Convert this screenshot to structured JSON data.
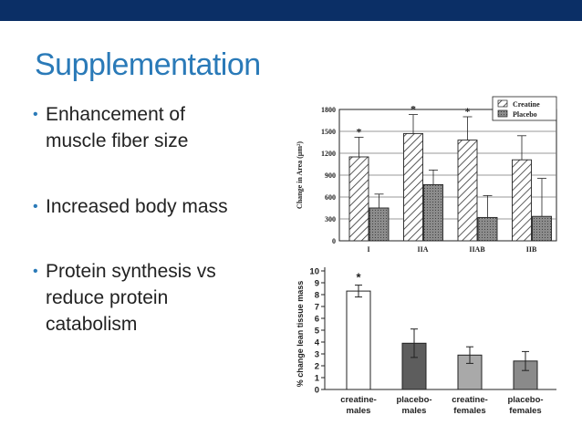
{
  "slide": {
    "title": "Supplementation",
    "bullets": [
      {
        "lines": [
          "Enhancement of",
          "muscle fiber size"
        ]
      },
      {
        "lines": [
          "Increased body mass"
        ]
      },
      {
        "lines": [
          "Protein synthesis vs",
          "reduce protein",
          "catabolism"
        ]
      }
    ]
  },
  "colors": {
    "top_bar": "#0b2f66",
    "title": "#2a7ab8",
    "bullet_text": "#222222"
  },
  "chart_data": [
    {
      "type": "bar",
      "ylabel": "Change in Area (μm²)",
      "categories": [
        "I",
        "IIA",
        "IIAB",
        "IIB"
      ],
      "ylim": [
        0,
        1800
      ],
      "yticks": [
        0,
        300,
        600,
        900,
        1200,
        1500,
        1800
      ],
      "grid": true,
      "legend_position": "top-right",
      "series": [
        {
          "name": "Creatine",
          "values": [
            1150,
            1470,
            1380,
            1110
          ],
          "errors": [
            270,
            260,
            320,
            330
          ],
          "fill": "hatched"
        },
        {
          "name": "Placebo",
          "values": [
            450,
            770,
            320,
            335
          ],
          "errors": [
            190,
            200,
            300,
            520
          ],
          "fill": "dotted-gray"
        }
      ],
      "annotations": [
        "*",
        "*",
        "*"
      ],
      "significant_categories": [
        "I",
        "IIA",
        "IIAB"
      ]
    },
    {
      "type": "bar",
      "ylabel": "% change lean tissue mass",
      "categories": [
        "creatine-\nmales",
        "placebo-\nmales",
        "creatine-\nfemales",
        "placebo-\nfemales"
      ],
      "values": [
        8.3,
        3.9,
        2.9,
        2.4
      ],
      "errors": [
        0.5,
        1.2,
        0.7,
        0.8
      ],
      "ylim": [
        0,
        10
      ],
      "yticks": [
        0,
        1,
        2,
        3,
        4,
        5,
        6,
        7,
        8,
        9,
        10
      ],
      "bar_colors": [
        "#ffffff",
        "#5d5d5d",
        "#a9a9a9",
        "#8a8a8a"
      ],
      "annotations": [
        "*"
      ],
      "significant_categories": [
        "creatine-\nmales"
      ]
    }
  ]
}
